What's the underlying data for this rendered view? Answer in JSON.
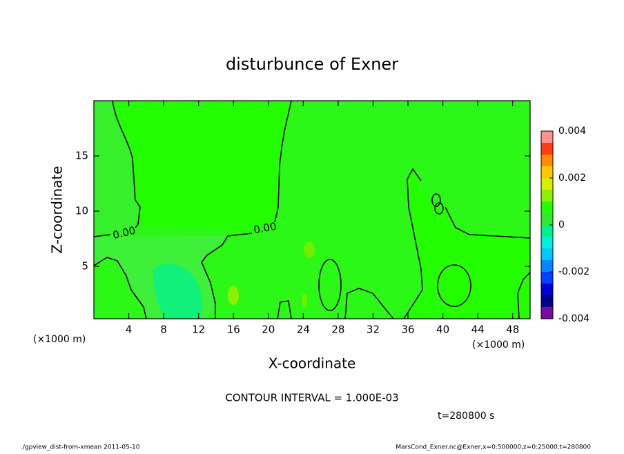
{
  "chart_data": {
    "type": "contour",
    "title": "disturbunce of Exner",
    "x_label": "X-coordinate",
    "y_label": "Z-coordinate",
    "x_unit": "(×1000 m)",
    "y_unit": "(×1000 m)",
    "xlim": [
      0,
      50
    ],
    "xticks": [
      4,
      8,
      12,
      16,
      20,
      24,
      28,
      32,
      36,
      40,
      44,
      48
    ],
    "ylim": [
      0.25,
      20
    ],
    "yticks": [
      5,
      10,
      15
    ],
    "contour_level": 0,
    "contour_labels": [
      "0.00",
      "0.00"
    ],
    "contour_interval_text": "CONTOUR INTERVAL = 1.000E-03",
    "time_text": "t=280800 s",
    "footer_left": "./gpview_dist-from-xmean  2011-05-10",
    "footer_right": "MarsCond_Exner.nc@Exner,x=0:500000,z=0:25000,t=280800",
    "colorbar": {
      "bounds": [
        -0.004,
        -0.0035,
        -0.003,
        -0.0025,
        -0.002,
        -0.0015,
        -0.001,
        -0.0005,
        0,
        0.0005,
        0.001,
        0.0015,
        0.002,
        0.0025,
        0.003,
        0.0035,
        0.004
      ],
      "colors": [
        "#7a0aa0",
        "#00008c",
        "#0000d8",
        "#0040ff",
        "#0088ff",
        "#00c8ff",
        "#00f0e0",
        "#00f090",
        "#30e830",
        "#22ff00",
        "#8cf000",
        "#d8f000",
        "#ffc800",
        "#ff8c00",
        "#ff3c14",
        "#ff9090"
      ],
      "ticks": [
        -0.004,
        -0.002,
        0,
        0.002,
        0.004
      ]
    }
  }
}
